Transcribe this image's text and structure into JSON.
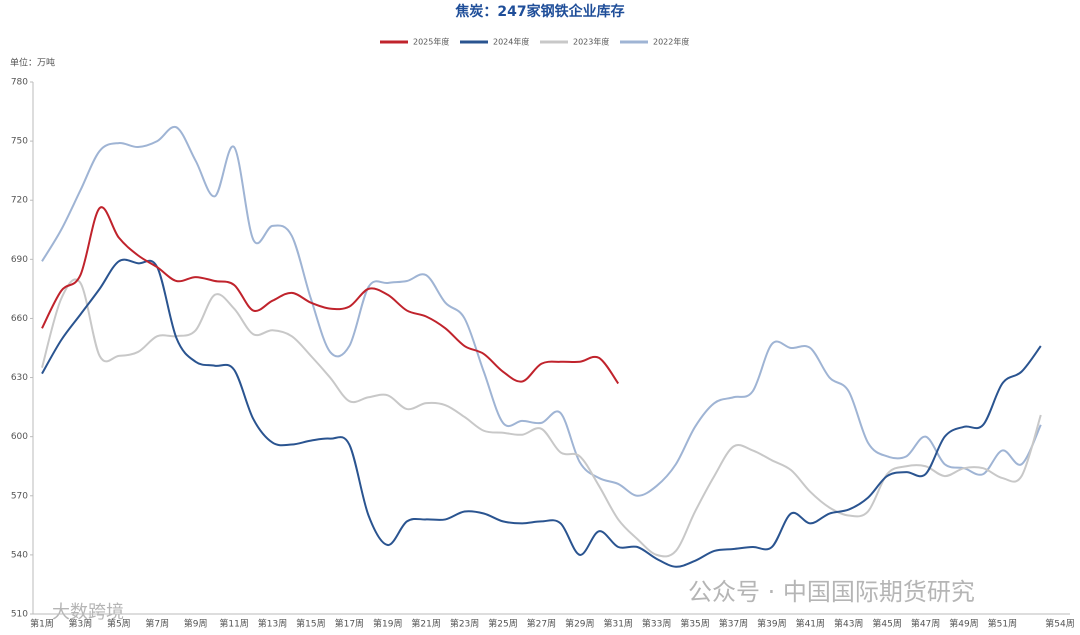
{
  "chart_data": {
    "type": "line",
    "title": "焦炭：247家钢铁企业库存",
    "unit_label": "单位：万吨",
    "watermarks": [
      "公众号 · 中国国际期货研究",
      "大数跨境"
    ],
    "categories": [
      "第1周",
      null,
      "第3周",
      null,
      "第5周",
      null,
      "第7周",
      null,
      "第9周",
      null,
      "第11周",
      null,
      "第13周",
      null,
      "第15周",
      null,
      "第17周",
      null,
      "第19周",
      null,
      "第21周",
      null,
      "第23周",
      null,
      "第25周",
      null,
      "第27周",
      null,
      "第29周",
      null,
      "第31周",
      null,
      "第33周",
      null,
      "第35周",
      null,
      "第37周",
      null,
      "第39周",
      null,
      "第41周",
      null,
      "第43周",
      null,
      "第45周",
      null,
      "第47周",
      null,
      "第49周",
      null,
      "第51周",
      null,
      null,
      "第54周"
    ],
    "ylim": [
      510,
      780
    ],
    "yticks": [
      510,
      540,
      570,
      600,
      630,
      660,
      690,
      720,
      750,
      780
    ],
    "grid": false,
    "legend": "top",
    "series": [
      {
        "name": "2025年度",
        "color": "#c0232c",
        "values": [
          655,
          674,
          682,
          716,
          701,
          692,
          686,
          679,
          681,
          679,
          677,
          664,
          669,
          673,
          668,
          665,
          666,
          675,
          672,
          664,
          661,
          655,
          646,
          642,
          633,
          628,
          637,
          638,
          638,
          640,
          627,
          null,
          null,
          null,
          null,
          null,
          null,
          null,
          null,
          null,
          null,
          null,
          null,
          null,
          null,
          null,
          null,
          null,
          null,
          null,
          null,
          null,
          null,
          null
        ]
      },
      {
        "name": "2024年度",
        "color": "#2a5490",
        "values": [
          632,
          649,
          662,
          675,
          689,
          688,
          686,
          650,
          638,
          636,
          634,
          609,
          597,
          596,
          598,
          599,
          596,
          560,
          545,
          557,
          558,
          558,
          562,
          561,
          557,
          556,
          557,
          556,
          540,
          552,
          544,
          544,
          538,
          534,
          537,
          542,
          543,
          544,
          544,
          561,
          556,
          561,
          563,
          569,
          580,
          582,
          581,
          600,
          605,
          606,
          627,
          633,
          646,
          null
        ]
      },
      {
        "name": "2023年度",
        "color": "#c8c8c8",
        "values": [
          635,
          670,
          678,
          641,
          641,
          643,
          651,
          651,
          654,
          672,
          665,
          652,
          654,
          651,
          641,
          630,
          618,
          620,
          621,
          614,
          617,
          616,
          610,
          603,
          602,
          601,
          604,
          592,
          590,
          575,
          558,
          548,
          540,
          542,
          562,
          580,
          595,
          593,
          588,
          583,
          572,
          564,
          560,
          562,
          581,
          585,
          585,
          580,
          584,
          584,
          579,
          580,
          611,
          null
        ]
      },
      {
        "name": "2022年度",
        "color": "#9fb4d4",
        "values": [
          689,
          705,
          725,
          745,
          749,
          747,
          750,
          757,
          740,
          722,
          747,
          700,
          707,
          702,
          670,
          643,
          646,
          676,
          678,
          679,
          682,
          668,
          660,
          633,
          607,
          608,
          607,
          612,
          587,
          579,
          576,
          570,
          575,
          586,
          605,
          617,
          620,
          623,
          647,
          645,
          645,
          630,
          623,
          597,
          590,
          590,
          600,
          586,
          584,
          581,
          593,
          586,
          606,
          null
        ]
      }
    ]
  }
}
